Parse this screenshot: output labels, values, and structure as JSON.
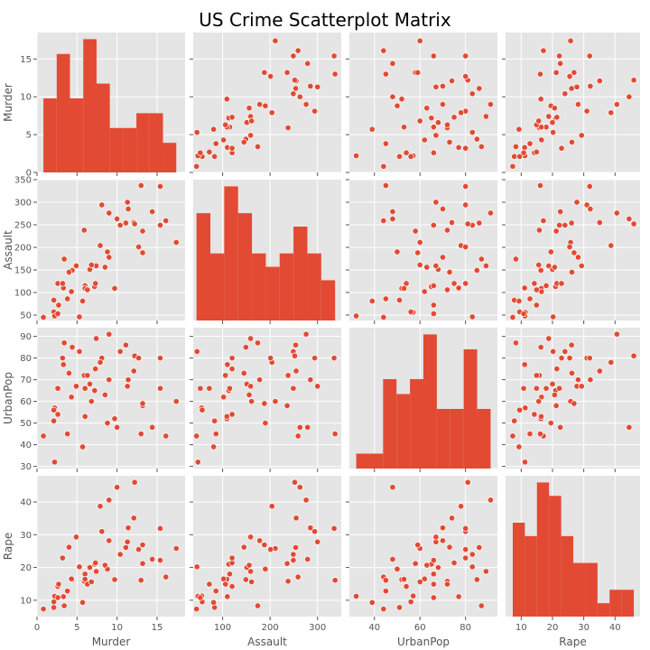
{
  "chart_data": {
    "type": "scatter",
    "title": "US Crime Scatterplot Matrix",
    "variables": [
      "Murder",
      "Assault",
      "UrbanPop",
      "Rape"
    ],
    "ranges": {
      "Murder": [
        0,
        18.5
      ],
      "Assault": [
        38,
        350
      ],
      "UrbanPop": [
        29,
        94
      ],
      "Rape": [
        5,
        48
      ]
    },
    "ticks": {
      "Murder": [
        0,
        5,
        10,
        15
      ],
      "Assault": [
        50,
        100,
        150,
        200,
        250,
        300,
        350
      ],
      "UrbanPop": [
        30,
        40,
        50,
        60,
        70,
        80,
        90
      ],
      "Rape": [
        10,
        20,
        30,
        40
      ]
    },
    "diag_ticks": {
      "Murder": [
        0,
        5,
        10,
        15
      ]
    },
    "x_ticks": {
      "Murder": [
        0,
        5,
        10,
        15
      ],
      "Assault": [
        100,
        200,
        300
      ],
      "UrbanPop": [
        40,
        60,
        80
      ],
      "Rape": [
        10,
        20,
        30,
        40
      ]
    },
    "grid": true,
    "marker_color": "#E24A33",
    "background_color": "#E5E5E5",
    "records": {
      "Murder": [
        13.2,
        10.0,
        8.1,
        8.8,
        9.0,
        7.9,
        3.3,
        5.9,
        15.4,
        17.4,
        5.3,
        2.6,
        10.4,
        7.2,
        2.2,
        6.0,
        9.7,
        15.4,
        2.1,
        11.3,
        4.4,
        12.1,
        2.7,
        16.1,
        9.0,
        6.0,
        4.3,
        12.2,
        2.1,
        7.4,
        11.4,
        11.1,
        13.0,
        0.8,
        7.3,
        6.6,
        4.9,
        6.3,
        3.4,
        14.4,
        3.8,
        13.2,
        12.7,
        3.2,
        2.2,
        8.5,
        4.0,
        5.7,
        2.6,
        6.8
      ],
      "Assault": [
        236,
        263,
        294,
        190,
        276,
        204,
        110,
        238,
        335,
        211,
        46,
        120,
        249,
        113,
        56,
        115,
        109,
        249,
        83,
        300,
        149,
        255,
        72,
        259,
        178,
        109,
        102,
        252,
        57,
        159,
        285,
        254,
        337,
        45,
        120,
        151,
        159,
        106,
        174,
        279,
        86,
        188,
        201,
        120,
        48,
        156,
        145,
        81,
        53,
        161
      ],
      "UrbanPop": [
        58,
        48,
        80,
        50,
        91,
        78,
        77,
        72,
        80,
        60,
        83,
        54,
        83,
        65,
        57,
        66,
        52,
        66,
        51,
        67,
        85,
        74,
        66,
        44,
        70,
        53,
        62,
        81,
        56,
        89,
        70,
        86,
        45,
        44,
        75,
        68,
        67,
        72,
        87,
        48,
        45,
        59,
        80,
        80,
        32,
        63,
        73,
        39,
        66,
        60
      ],
      "Rape": [
        21.2,
        44.5,
        31.0,
        19.5,
        40.6,
        38.7,
        11.1,
        15.8,
        31.9,
        25.8,
        20.2,
        14.2,
        24.0,
        21.0,
        11.3,
        18.0,
        16.3,
        22.2,
        7.8,
        27.8,
        16.3,
        35.1,
        14.9,
        17.1,
        28.2,
        16.4,
        16.5,
        46.0,
        9.5,
        18.8,
        32.1,
        26.1,
        16.1,
        7.3,
        21.4,
        20.0,
        29.3,
        14.9,
        8.3,
        22.5,
        12.8,
        26.9,
        25.5,
        22.9,
        11.2,
        20.7,
        26.2,
        9.3,
        10.8,
        15.6
      ]
    },
    "histograms": {
      "Murder": {
        "range": [
          0.8,
          17.4
        ],
        "counts": [
          5,
          8,
          5,
          9,
          6,
          3,
          3,
          4,
          4,
          2
        ]
      },
      "Assault": {
        "range": [
          45,
          337
        ],
        "counts": [
          8,
          5,
          10,
          8,
          5,
          4,
          5,
          7,
          5,
          3
        ]
      },
      "UrbanPop": {
        "range": [
          32,
          91
        ],
        "counts": [
          1,
          1,
          6,
          5,
          6,
          9,
          4,
          4,
          8,
          4
        ]
      },
      "Rape": {
        "range": [
          7.3,
          46.0
        ],
        "counts": [
          7,
          6,
          10,
          9,
          6,
          4,
          4,
          1,
          2,
          2
        ]
      }
    }
  }
}
